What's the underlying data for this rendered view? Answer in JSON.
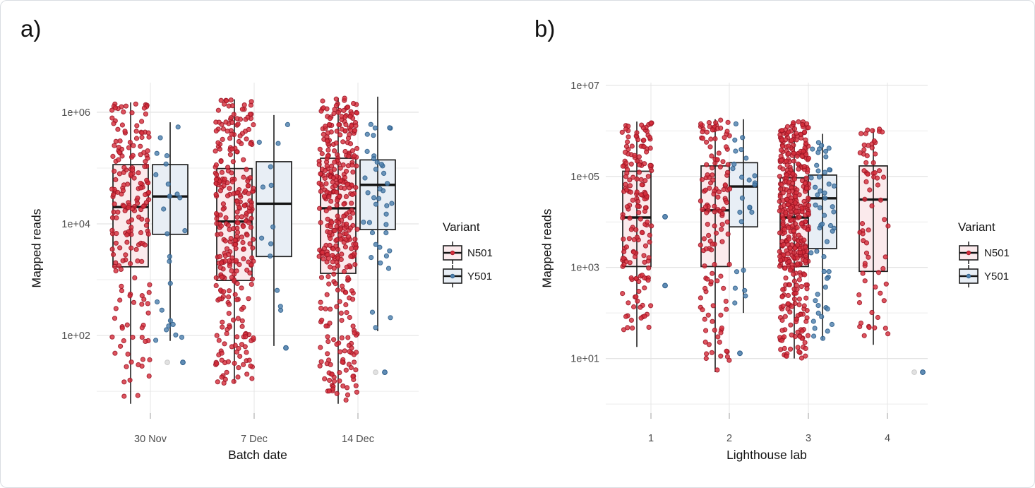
{
  "figure": {
    "panel_a_label": "a)",
    "panel_b_label": "b)"
  },
  "legend": {
    "title": "Variant",
    "items": [
      {
        "label": "N501",
        "point_color": "#d62e3c",
        "point_edge": "#9c1423",
        "box_fill": "#fbeaec"
      },
      {
        "label": "Y501",
        "point_color": "#4e80ad",
        "point_edge": "#2c5d8a",
        "box_fill": "#e8eef5"
      }
    ],
    "na_point_color": "#dedede",
    "na_point_edge": "#cbcbcb"
  },
  "chart_data": [
    {
      "type": "boxplot-jitter",
      "panel_label": "a)",
      "xlabel": "Batch date",
      "ylabel": "Mapped reads",
      "y_scale": "log10",
      "ylim_log": [
        0.61,
        6.53
      ],
      "y_ticks": [
        {
          "label": "1e+02",
          "log": 2
        },
        {
          "label": "1e+04",
          "log": 4
        },
        {
          "label": "1e+06",
          "log": 6
        }
      ],
      "y_minor_log": [
        1,
        3,
        5
      ],
      "categories": [
        "30 Nov",
        "7 Dec",
        "14 Dec"
      ],
      "series": [
        "N501",
        "Y501"
      ],
      "grid": true,
      "legend_position": "right",
      "groups": [
        {
          "category": "30 Nov",
          "series": "N501",
          "n_points": 200,
          "whisker_min": 6,
          "q1": 1700,
          "median": 20000,
          "q3": 115000,
          "whisker_max": 1500000
        },
        {
          "category": "30 Nov",
          "series": "Y501",
          "n_points": 25,
          "whisker_min": 80,
          "q1": 6500,
          "median": 31000,
          "q3": 115000,
          "whisker_max": 660000
        },
        {
          "category": "7 Dec",
          "series": "N501",
          "n_points": 310,
          "whisker_min": 14,
          "q1": 970,
          "median": 11000,
          "q3": 98000,
          "whisker_max": 1700000
        },
        {
          "category": "7 Dec",
          "series": "Y501",
          "n_points": 13,
          "whisker_min": 65,
          "q1": 2600,
          "median": 23000,
          "q3": 130000,
          "whisker_max": 890000
        },
        {
          "category": "14 Dec",
          "series": "N501",
          "n_points": 380,
          "whisker_min": 6,
          "q1": 1300,
          "median": 19000,
          "q3": 150000,
          "whisker_max": 1800000
        },
        {
          "category": "14 Dec",
          "series": "Y501",
          "n_points": 40,
          "whisker_min": 120,
          "q1": 7900,
          "median": 50000,
          "q3": 140000,
          "whisker_max": 1900000
        }
      ],
      "extra_points": [
        {
          "category": "30 Nov",
          "series": "NA",
          "value": 33,
          "dx": 24
        },
        {
          "category": "30 Nov",
          "series": "Y501",
          "value": 33,
          "dx": 46
        },
        {
          "category": "7 Dec",
          "series": "Y501",
          "value": 60,
          "dx": 45
        },
        {
          "category": "14 Dec",
          "series": "NA",
          "value": 22,
          "dx": 25
        },
        {
          "category": "14 Dec",
          "series": "Y501",
          "value": 22,
          "dx": 38
        }
      ]
    },
    {
      "type": "boxplot-jitter",
      "panel_label": "b)",
      "xlabel": "Lighthouse lab",
      "ylabel": "Mapped reads",
      "y_scale": "log10",
      "ylim_log": [
        -0.2,
        7.06
      ],
      "y_ticks": [
        {
          "label": "1e+01",
          "log": 1
        },
        {
          "label": "1e+03",
          "log": 3
        },
        {
          "label": "1e+05",
          "log": 5
        },
        {
          "label": "1e+07",
          "log": 7
        }
      ],
      "y_minor_log": [
        0,
        2,
        4,
        6
      ],
      "categories": [
        "1",
        "2",
        "3",
        "4"
      ],
      "series": [
        "N501",
        "Y501"
      ],
      "grid": true,
      "legend_position": "right",
      "groups": [
        {
          "category": "1",
          "series": "N501",
          "n_points": 170,
          "whisker_min": 18,
          "q1": 1050,
          "median": 12500,
          "q3": 130000,
          "whisker_max": 1600000
        },
        {
          "category": "2",
          "series": "N501",
          "n_points": 140,
          "whisker_min": 5,
          "q1": 1050,
          "median": 18000,
          "q3": 170000,
          "whisker_max": 1800000
        },
        {
          "category": "2",
          "series": "Y501",
          "n_points": 25,
          "whisker_min": 100,
          "q1": 7800,
          "median": 60000,
          "q3": 200000,
          "whisker_max": 1800000
        },
        {
          "category": "3",
          "series": "N501",
          "n_points": 420,
          "whisker_min": 10,
          "q1": 1050,
          "median": 12500,
          "q3": 93000,
          "whisker_max": 1600000
        },
        {
          "category": "3",
          "series": "Y501",
          "n_points": 55,
          "whisker_min": 26,
          "q1": 2600,
          "median": 33000,
          "q3": 107000,
          "whisker_max": 860000
        },
        {
          "category": "4",
          "series": "N501",
          "n_points": 70,
          "whisker_min": 20,
          "q1": 820,
          "median": 31000,
          "q3": 170000,
          "whisker_max": 1100000
        }
      ],
      "extra_points": [
        {
          "category": "1",
          "series": "Y501",
          "value": 13000,
          "dx": 20
        },
        {
          "category": "1",
          "series": "Y501",
          "value": 400,
          "dx": 20
        },
        {
          "category": "2",
          "series": "Y501",
          "value": 13,
          "dx": 15
        },
        {
          "category": "4",
          "series": "NA",
          "value": 5,
          "dx": 38
        },
        {
          "category": "4",
          "series": "Y501",
          "value": 5,
          "dx": 50
        }
      ]
    }
  ]
}
